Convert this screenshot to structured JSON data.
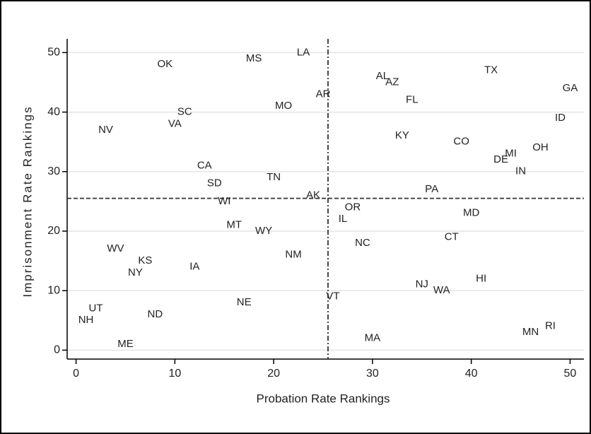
{
  "chart_data": {
    "type": "scatter",
    "x_label": "Probation Rate Rankings",
    "y_label": "Imprisonment Rate Rankings",
    "labels": [
      "NH",
      "UT",
      "NV",
      "WV",
      "ME",
      "NY",
      "KS",
      "ND",
      "OK",
      "VA",
      "SC",
      "IA",
      "CA",
      "SD",
      "WI",
      "MT",
      "NE",
      "MS",
      "WY",
      "TN",
      "MO",
      "NM",
      "LA",
      "AK",
      "AR",
      "VT",
      "IL",
      "OR",
      "NC",
      "MA",
      "AL",
      "AZ",
      "KY",
      "FL",
      "NJ",
      "PA",
      "WA",
      "CT",
      "CO",
      "MD",
      "HI",
      "TX",
      "DE",
      "MI",
      "IN",
      "MN",
      "OH",
      "RI",
      "ID",
      "GA"
    ],
    "x": [
      1,
      2,
      3,
      4,
      5,
      6,
      7,
      8,
      9,
      10,
      11,
      12,
      13,
      14,
      15,
      16,
      17,
      18,
      19,
      20,
      21,
      22,
      23,
      24,
      25,
      26,
      27,
      28,
      29,
      30,
      31,
      32,
      33,
      34,
      35,
      36,
      37,
      38,
      39,
      40,
      41,
      42,
      43,
      44,
      45,
      46,
      47,
      48,
      49,
      50
    ],
    "values": [
      5,
      7,
      37,
      17,
      1,
      13,
      15,
      6,
      48,
      38,
      40,
      14,
      31,
      28,
      25,
      21,
      8,
      49,
      20,
      29,
      41,
      16,
      50,
      26,
      43,
      9,
      22,
      24,
      18,
      2,
      46,
      45,
      36,
      42,
      11,
      27,
      10,
      19,
      35,
      23,
      12,
      47,
      32,
      33,
      30,
      3,
      34,
      4,
      39,
      44
    ],
    "vline": 25.5,
    "hline": 25.5,
    "xlim": [
      -0.9,
      51.4
    ],
    "ylim": [
      -1.5,
      52.3
    ],
    "xticks": [
      0,
      10,
      20,
      30,
      40,
      50
    ],
    "yticks": [
      0,
      10,
      20,
      30,
      40,
      50
    ],
    "grid": true,
    "color": "#000000"
  }
}
